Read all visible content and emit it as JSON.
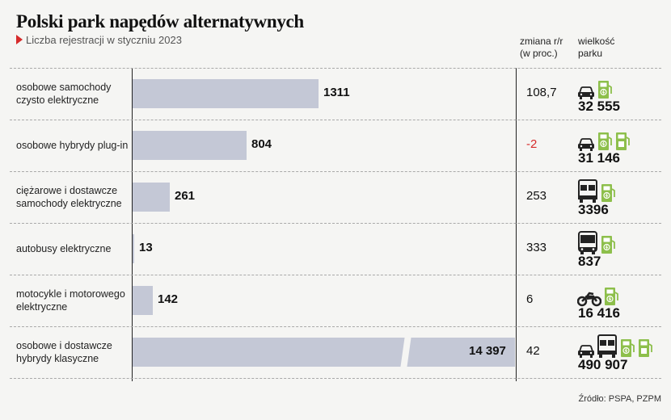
{
  "header": {
    "title": "Polski park napędów alternatywnych",
    "subtitle": "Liczba rejestracji w styczniu 2023",
    "col_change_line1": "zmiana r/r",
    "col_change_line2": "(w proc.)",
    "col_fleet_line1": "wielkość",
    "col_fleet_line2": "parku"
  },
  "chart_data": {
    "type": "bar",
    "title": "Polski park napędów alternatywnych",
    "subtitle": "Liczba rejestracji w styczniu 2023",
    "orientation": "horizontal",
    "categories": [
      "osobowe samochody czysto elektryczne",
      "osobowe hybrydy plug-in",
      "ciężarowe i dostawcze samochody elektryczne",
      "autobusy elektryczne",
      "motocykle i motorowego elektryczne",
      "osobowe i dostawcze hybrydy klasyczne"
    ],
    "values": [
      1311,
      804,
      261,
      13,
      142,
      14397
    ],
    "broken_axis_for": [
      5
    ],
    "xlim": [
      0,
      2000
    ],
    "value_labels": [
      "1311",
      "804",
      "261",
      "13",
      "142",
      "14 397"
    ],
    "yoy_change_percent": [
      "108,7",
      "-2",
      "253",
      "333",
      "6",
      "42"
    ],
    "fleet_size": [
      "32 555",
      "31 146",
      "3396",
      "837",
      "16 416",
      "490 907"
    ],
    "negative_color": "#d62b2b",
    "bar_color": "#c4c8d6",
    "icon_green": "#8dbf4b"
  },
  "rows": [
    {
      "label_1": "osobowe samochody",
      "label_2": "czysto elektryczne",
      "icons": [
        "car-icon",
        "charger-icon"
      ]
    },
    {
      "label_1": "osobowe hybrydy plug-in",
      "label_2": "",
      "icons": [
        "car-icon",
        "charger-icon",
        "fuel-pump-icon"
      ]
    },
    {
      "label_1": "ciężarowe i dostawcze",
      "label_2": "samochody elektryczne",
      "icons": [
        "truck-icon",
        "charger-icon"
      ]
    },
    {
      "label_1": "autobusy elektryczne",
      "label_2": "",
      "icons": [
        "bus-icon",
        "charger-icon"
      ]
    },
    {
      "label_1": "motocykle i motorowego",
      "label_2": "elektryczne",
      "icons": [
        "motorcycle-icon",
        "charger-icon"
      ]
    },
    {
      "label_1": "osobowe i dostawcze",
      "label_2": "hybrydy klasyczne",
      "icons": [
        "car-icon",
        "truck-icon",
        "charger-icon",
        "fuel-pump-icon"
      ]
    }
  ],
  "source": "Źródło: PSPA, PZPM"
}
